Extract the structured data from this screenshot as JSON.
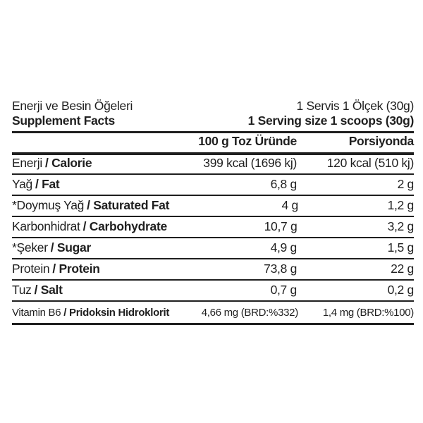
{
  "label": {
    "colors": {
      "text": "#1f1f1f",
      "rule": "#1f1f1f",
      "background": "#ffffff"
    },
    "intro": {
      "title_tr": "Enerji ve Besin Öğeleri",
      "serving_tr": "1 Servis 1 Ölçek (30g)"
    },
    "title": {
      "title_en": "Supplement Facts",
      "serving_en": "1 Serving size 1 scoops (30g)"
    },
    "columns": {
      "per100_header": "100 g Toz Üründe",
      "portion_header": "Porsiyonda"
    },
    "rows": [
      {
        "name_tr": "Enerji",
        "name_en": "/ Calorie",
        "per100": "399 kcal (1696 kj)",
        "portion": "120 kcal (510 kj)"
      },
      {
        "name_tr": "Yağ",
        "name_en": "/ Fat",
        "per100": "6,8 g",
        "portion": "2 g"
      },
      {
        "name_tr": "*Doymuş Yağ",
        "name_en": "/ Saturated Fat",
        "per100": "4 g",
        "portion": "1,2 g"
      },
      {
        "name_tr": "Karbonhidrat",
        "name_en": "/ Carbohydrate",
        "per100": "10,7 g",
        "portion": "3,2 g"
      },
      {
        "name_tr": "*Şeker",
        "name_en": "/ Sugar",
        "per100": "4,9 g",
        "portion": "1,5 g"
      },
      {
        "name_tr": "Protein",
        "name_en": "/ Protein",
        "per100": "73,8 g",
        "portion": "22 g"
      },
      {
        "name_tr": "Tuz",
        "name_en": "/ Salt",
        "per100": "0,7 g",
        "portion": "0,2 g"
      },
      {
        "name_tr": "Vitamin B6",
        "name_en": "/ Pridoksin Hidroklorit",
        "per100": "4,66 mg (BRD:%332)",
        "portion": "1,4 mg (BRD:%100)"
      }
    ]
  }
}
